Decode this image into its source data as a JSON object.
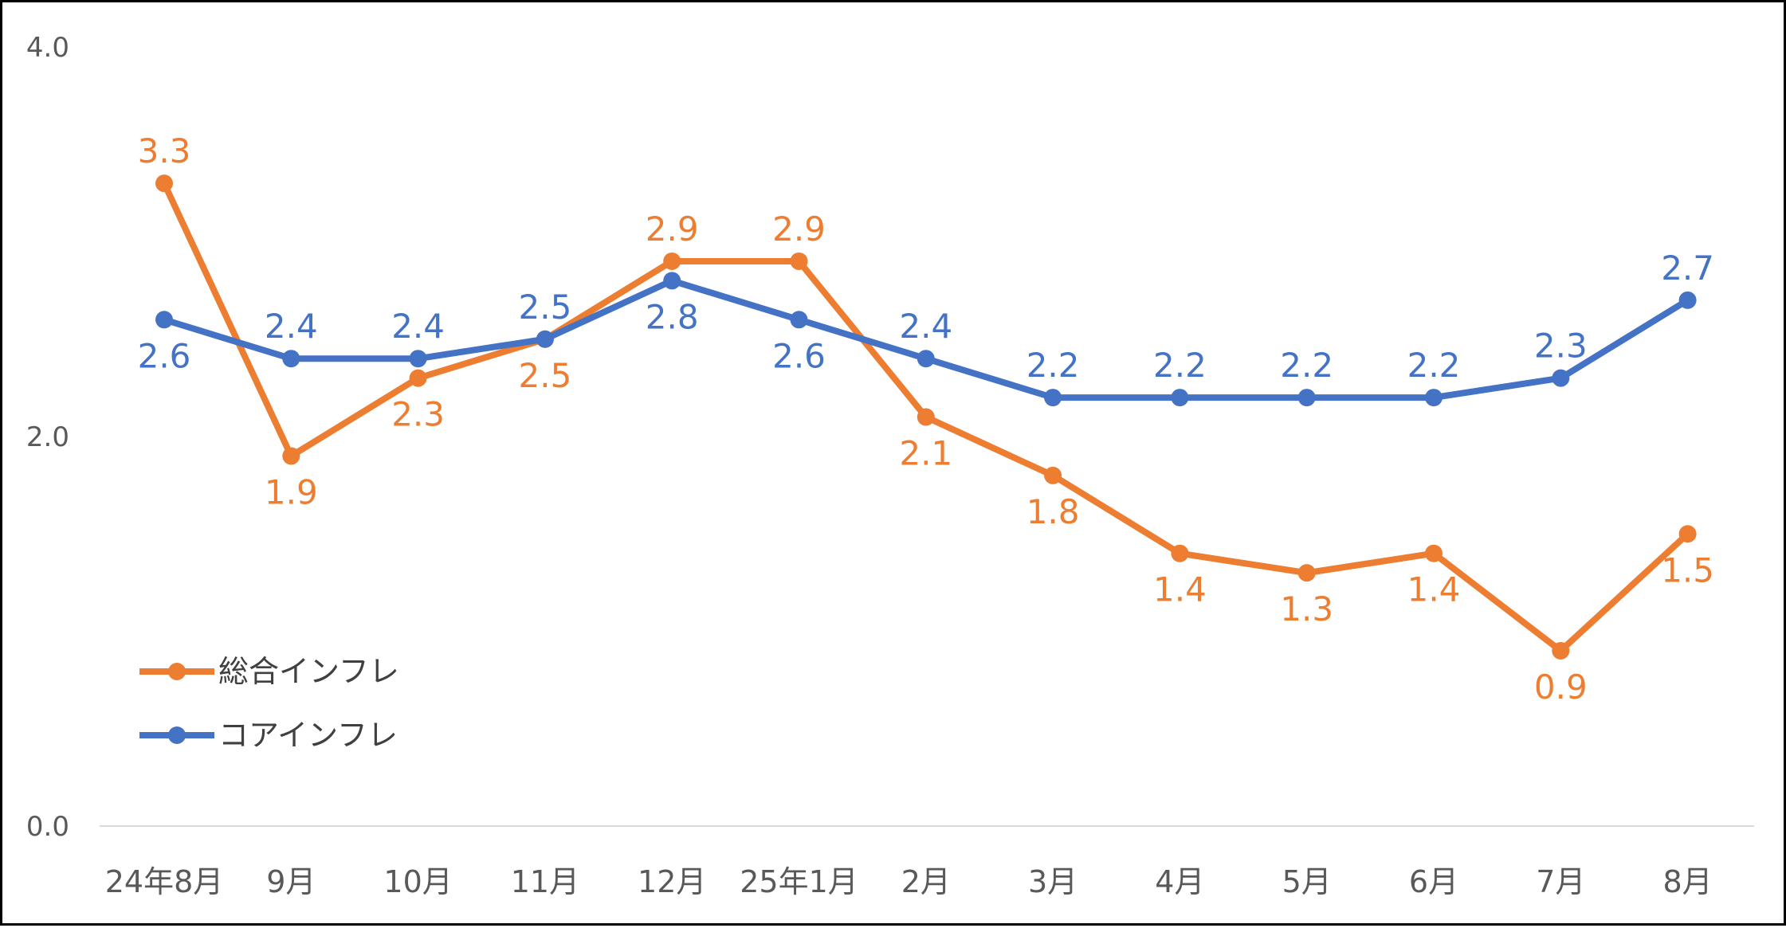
{
  "chart_data": {
    "type": "line",
    "categories": [
      "24年8月",
      "9月",
      "10月",
      "11月",
      "12月",
      "25年1月",
      "2月",
      "3月",
      "4月",
      "5月",
      "6月",
      "7月",
      "8月"
    ],
    "y_ticks": [
      "0.0",
      "2.0",
      "4.0"
    ],
    "ylim": [
      0,
      4
    ],
    "grid": false,
    "legend_position": "bottom-left",
    "series": [
      {
        "name": "総合インフレ",
        "color": "#ED7D31",
        "values": [
          3.3,
          1.9,
          2.3,
          2.5,
          2.9,
          2.9,
          2.1,
          1.8,
          1.4,
          1.3,
          1.4,
          0.9,
          1.5
        ],
        "labels": [
          "3.3",
          "1.9",
          "2.3",
          "2.5",
          "2.9",
          "2.9",
          "2.1",
          "1.8",
          "1.4",
          "1.3",
          "1.4",
          "0.9",
          "1.5"
        ]
      },
      {
        "name": "コアインフレ",
        "color": "#4472C4",
        "values": [
          2.6,
          2.4,
          2.4,
          2.5,
          2.8,
          2.6,
          2.4,
          2.2,
          2.2,
          2.2,
          2.2,
          2.3,
          2.7
        ],
        "labels": [
          "2.6",
          "2.4",
          "2.4",
          "2.5",
          "2.8",
          "2.6",
          "2.4",
          "2.2",
          "2.2",
          "2.2",
          "2.2",
          "2.3",
          "2.7"
        ]
      }
    ]
  },
  "legend": {
    "items": [
      "総合インフレ",
      "コアインフレ"
    ]
  }
}
